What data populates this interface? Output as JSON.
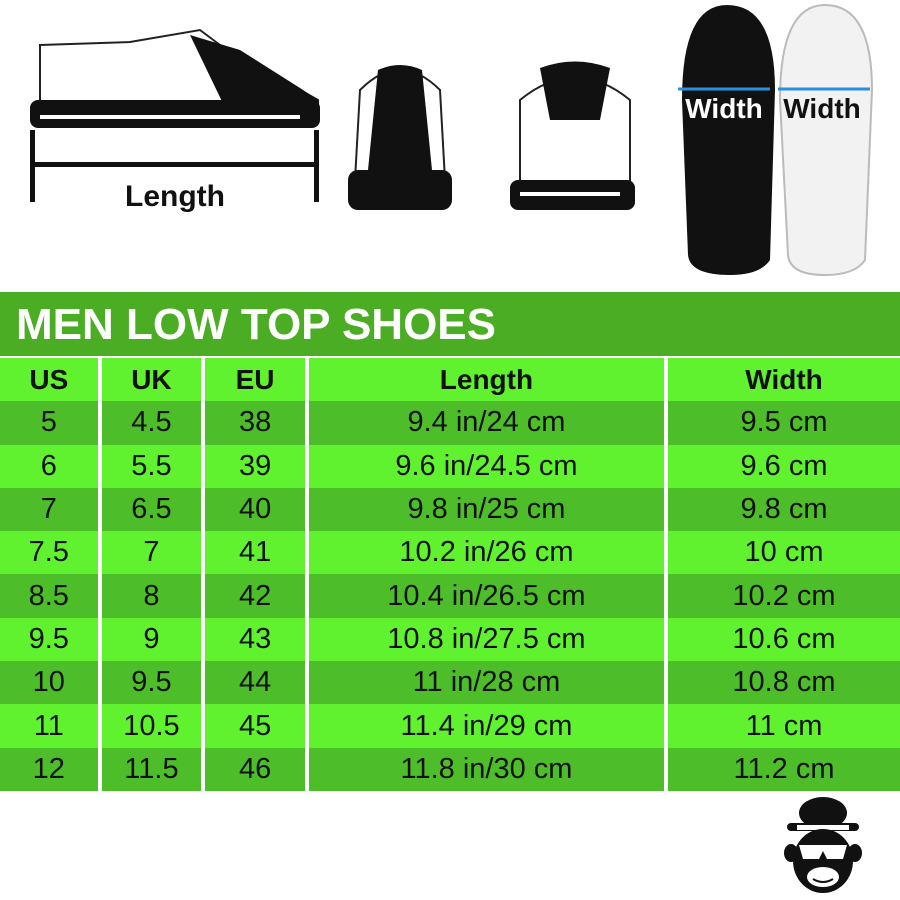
{
  "illustration": {
    "length_label": "Length",
    "width_label_black": "Width",
    "width_label_white": "Width",
    "arrow_color": "#2b8ee0"
  },
  "title": "MEN LOW TOP SHOES",
  "colors": {
    "title_bg": "#4aad23",
    "light_row": "#60f22e",
    "dark_row": "#4dbd29"
  },
  "table": {
    "headers": [
      "US",
      "UK",
      "EU",
      "Length",
      "Width"
    ],
    "rows": [
      [
        "5",
        "4.5",
        "38",
        "9.4 in/24 cm",
        "9.5 cm"
      ],
      [
        "6",
        "5.5",
        "39",
        "9.6 in/24.5 cm",
        "9.6 cm"
      ],
      [
        "7",
        "6.5",
        "40",
        "9.8 in/25 cm",
        "9.8 cm"
      ],
      [
        "7.5",
        "7",
        "41",
        "10.2 in/26 cm",
        "10 cm"
      ],
      [
        "8.5",
        "8",
        "42",
        "10.4 in/26.5 cm",
        "10.2 cm"
      ],
      [
        "9.5",
        "9",
        "43",
        "10.8 in/27.5 cm",
        "10.6 cm"
      ],
      [
        "10",
        "9.5",
        "44",
        "11 in/28 cm",
        "10.8 cm"
      ],
      [
        "11",
        "10.5",
        "45",
        "11.4 in/29 cm",
        "11 cm"
      ],
      [
        "12",
        "11.5",
        "46",
        "11.8 in/30 cm",
        "11.2 cm"
      ]
    ]
  },
  "logo": {
    "icon": "monkey-with-hat-and-sunglasses"
  }
}
